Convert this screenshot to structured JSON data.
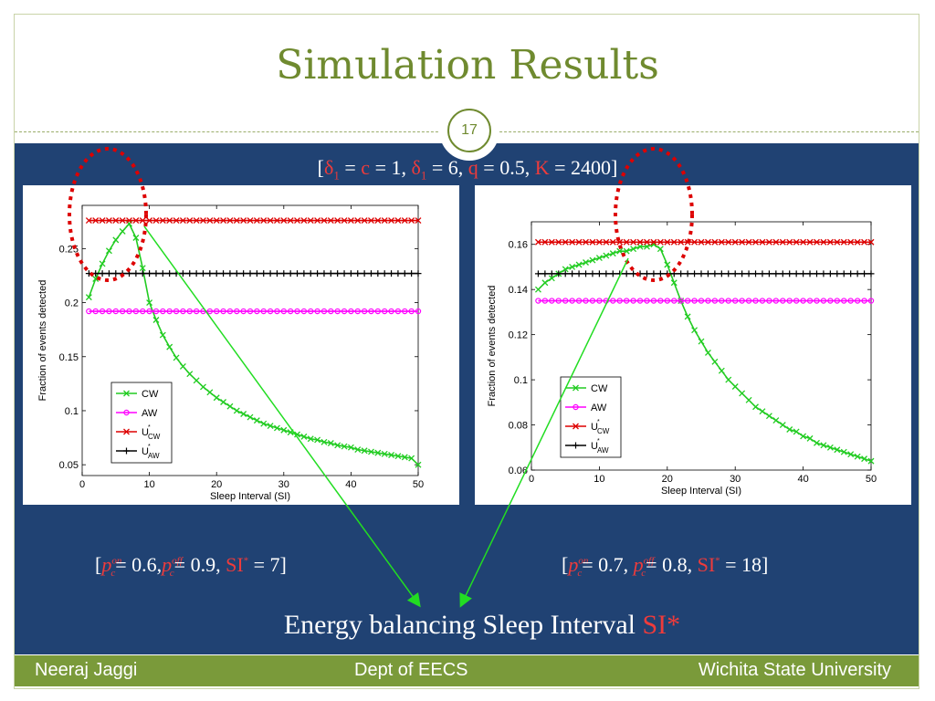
{
  "slide": {
    "title": "Simulation Results",
    "page_number": "17",
    "params": {
      "open": "[",
      "delta": "δ",
      "sub1": "1",
      "eq_c_label": " = ",
      "c": "c",
      "c_value": " = 1, ",
      "delta2": "δ",
      "sub2": "1",
      "d2_value": " = 6, ",
      "q": "q",
      "q_value": " = 0.5, ",
      "K": "K",
      "K_value": " = 2400]"
    },
    "caption_left": {
      "open": "[",
      "p": "p",
      "on": "on",
      "c_sub": "c",
      "v1": "= 0.6,",
      "p2": "p",
      "off": "off",
      "c_sub2": "c",
      "v2": "= 0.9, ",
      "si": "SI",
      "star": "*",
      "v3": " = 7]"
    },
    "caption_right": {
      "open": "[",
      "p": "p",
      "on": "on",
      "c_sub": "c",
      "v1": "= 0.7, ",
      "p2": "p",
      "off": "off",
      "c_sub2": "c",
      "v2": "= 0.8, ",
      "si": "SI",
      "star": "*",
      "v3": " = 18]"
    },
    "energy_text": "Energy balancing Sleep Interval ",
    "energy_si": "SI*",
    "footer": {
      "left": "Neeraj Jaggi",
      "center": "Dept of EECS",
      "right": "Wichita State University"
    }
  },
  "colors": {
    "title_green": "#6f8a2f",
    "band_blue": "#204273",
    "footer_green": "#7a9a3a",
    "accent_red": "#ee3b3b",
    "cw": "#22cc22",
    "aw": "#ff00ff",
    "ucw": "#dd0000",
    "uaw": "#000000",
    "arrow": "#22dd22",
    "ellipse": "#dd0000"
  },
  "chart_data": [
    {
      "type": "line",
      "title": "",
      "xlabel": "Sleep Interval (SI)",
      "ylabel": "Fraction of events detected",
      "xlim": [
        0,
        50
      ],
      "ylim": [
        0.04,
        0.29
      ],
      "xticks": [
        0,
        10,
        20,
        30,
        40,
        50
      ],
      "yticks": [
        0.05,
        0.1,
        0.15,
        0.2,
        0.25
      ],
      "ytick_labels": [
        "0.05",
        "0.1",
        "0.15",
        "0.2",
        "0.25"
      ],
      "grid": false,
      "legend": "lower-left",
      "legend_entries": [
        {
          "label": "CW"
        },
        {
          "label": "AW"
        },
        {
          "label": "U",
          "sup": "*",
          "sub": "CW"
        },
        {
          "label": "U",
          "sup": "*",
          "sub": "AW"
        }
      ],
      "series": [
        {
          "name": "CW",
          "marker": "x",
          "x": [
            1,
            2,
            3,
            4,
            5,
            6,
            7,
            8,
            9,
            10,
            11,
            12,
            13,
            14,
            15,
            16,
            17,
            18,
            19,
            20,
            21,
            22,
            23,
            24,
            25,
            26,
            27,
            28,
            29,
            30,
            31,
            32,
            33,
            34,
            35,
            36,
            37,
            38,
            39,
            40,
            41,
            42,
            43,
            44,
            45,
            46,
            47,
            48,
            49,
            50
          ],
          "values": [
            0.205,
            0.222,
            0.236,
            0.248,
            0.258,
            0.266,
            0.273,
            0.26,
            0.232,
            0.2,
            0.184,
            0.17,
            0.159,
            0.149,
            0.141,
            0.134,
            0.128,
            0.122,
            0.117,
            0.112,
            0.108,
            0.104,
            0.1,
            0.097,
            0.094,
            0.091,
            0.088,
            0.086,
            0.084,
            0.082,
            0.08,
            0.078,
            0.076,
            0.074,
            0.073,
            0.071,
            0.07,
            0.068,
            0.067,
            0.066,
            0.064,
            0.063,
            0.062,
            0.061,
            0.06,
            0.059,
            0.058,
            0.057,
            0.056,
            0.05
          ]
        },
        {
          "name": "AW",
          "marker": "o",
          "x": [
            1,
            50
          ],
          "values": [
            0.192,
            0.192
          ]
        },
        {
          "name": "U*CW",
          "marker": "x",
          "x": [
            1,
            50
          ],
          "values": [
            0.276,
            0.276
          ]
        },
        {
          "name": "U*AW",
          "marker": "+",
          "x": [
            1,
            50
          ],
          "values": [
            0.227,
            0.227
          ]
        }
      ]
    },
    {
      "type": "line",
      "title": "",
      "xlabel": "Sleep Interval (SI)",
      "ylabel": "Fraction of events detected",
      "xlim": [
        0,
        50
      ],
      "ylim": [
        0.06,
        0.17
      ],
      "xticks": [
        0,
        10,
        20,
        30,
        40,
        50
      ],
      "yticks": [
        0.06,
        0.08,
        0.1,
        0.12,
        0.14,
        0.16
      ],
      "ytick_labels": [
        "0.06",
        "0.08",
        "0.1",
        "0.12",
        "0.14",
        "0.16"
      ],
      "grid": false,
      "legend": "lower-left",
      "legend_entries": [
        {
          "label": "CW"
        },
        {
          "label": "AW"
        },
        {
          "label": "U",
          "sup": "*",
          "sub": "CW"
        },
        {
          "label": "U",
          "sup": "*",
          "sub": "AW"
        }
      ],
      "series": [
        {
          "name": "CW",
          "marker": "x",
          "x": [
            1,
            2,
            3,
            4,
            5,
            6,
            7,
            8,
            9,
            10,
            11,
            12,
            13,
            14,
            15,
            16,
            17,
            18,
            19,
            20,
            21,
            22,
            23,
            24,
            25,
            26,
            27,
            28,
            29,
            30,
            31,
            32,
            33,
            34,
            35,
            36,
            37,
            38,
            39,
            40,
            41,
            42,
            43,
            44,
            45,
            46,
            47,
            48,
            49,
            50
          ],
          "values": [
            0.14,
            0.143,
            0.145,
            0.147,
            0.149,
            0.15,
            0.151,
            0.152,
            0.153,
            0.154,
            0.155,
            0.156,
            0.157,
            0.157,
            0.158,
            0.159,
            0.159,
            0.16,
            0.158,
            0.151,
            0.143,
            0.135,
            0.128,
            0.122,
            0.117,
            0.112,
            0.108,
            0.104,
            0.1,
            0.097,
            0.094,
            0.091,
            0.088,
            0.086,
            0.084,
            0.082,
            0.08,
            0.078,
            0.077,
            0.075,
            0.074,
            0.072,
            0.071,
            0.07,
            0.069,
            0.068,
            0.067,
            0.066,
            0.065,
            0.064
          ]
        },
        {
          "name": "AW",
          "marker": "o",
          "x": [
            1,
            50
          ],
          "values": [
            0.135,
            0.135
          ]
        },
        {
          "name": "U*CW",
          "marker": "x",
          "x": [
            1,
            50
          ],
          "values": [
            0.161,
            0.161
          ]
        },
        {
          "name": "U*AW",
          "marker": "+",
          "x": [
            1,
            50
          ],
          "values": [
            0.147,
            0.147
          ]
        }
      ]
    }
  ]
}
